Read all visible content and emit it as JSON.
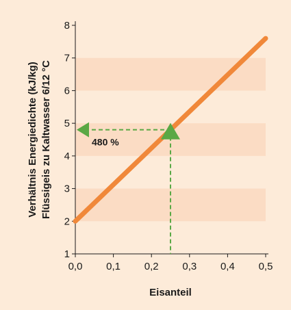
{
  "chart_data": {
    "type": "line",
    "xlabel": "Eisanteil",
    "ylabel_line1": "Verhältnis Energiedichte (kJ/kg)",
    "ylabel_line2": "Flüssigeis zu Kaltwasser 6/12 °C",
    "xlim": [
      0,
      0.5
    ],
    "ylim": [
      1,
      8
    ],
    "x_ticks": [
      0,
      0.1,
      0.2,
      0.3,
      0.4,
      0.5
    ],
    "x_tick_labels": [
      "0,0",
      "0,1",
      "0,2",
      "0,3",
      "0,4",
      "0,5"
    ],
    "y_ticks": [
      1,
      2,
      3,
      4,
      5,
      6,
      7,
      8
    ],
    "y_tick_labels": [
      "1",
      "2",
      "3",
      "4",
      "5",
      "6",
      "7",
      "8"
    ],
    "series": [
      {
        "x": [
          0,
          0.5
        ],
        "y": [
          2.0,
          7.6
        ],
        "color": "#f0883a"
      }
    ],
    "annotation": {
      "label": "480 %",
      "x": 0.25,
      "y": 4.8,
      "color": "#5aa845"
    },
    "band_color": "#fbdcc4",
    "background_color": "#fdebd9"
  }
}
